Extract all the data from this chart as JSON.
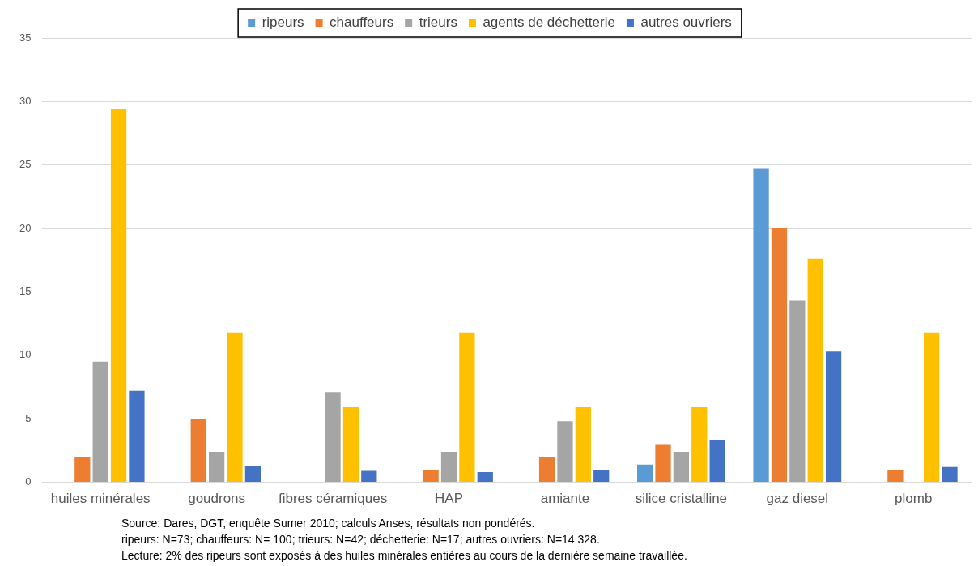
{
  "chart_data": {
    "type": "bar",
    "categories": [
      "huiles minérales",
      "goudrons",
      "fibres céramiques",
      "HAP",
      "amiante",
      "silice cristalline",
      "gaz diesel",
      "plomb"
    ],
    "series": [
      {
        "name": "ripeurs",
        "color": "#5b9bd5",
        "values": [
          0,
          0,
          0,
          0,
          0,
          1.4,
          24.7,
          0
        ]
      },
      {
        "name": "chauffeurs",
        "color": "#ed7d31",
        "values": [
          2.0,
          5.0,
          0,
          1.0,
          2.0,
          3.0,
          20.0,
          1.0
        ]
      },
      {
        "name": "trieurs",
        "color": "#a5a5a5",
        "values": [
          9.5,
          2.4,
          7.1,
          2.4,
          4.8,
          2.4,
          14.3,
          0
        ]
      },
      {
        "name": "agents de déchetterie",
        "color": "#ffc000",
        "values": [
          29.4,
          11.8,
          5.9,
          11.8,
          5.9,
          5.9,
          17.6,
          11.8
        ]
      },
      {
        "name": "autres ouvriers",
        "color": "#4472c4",
        "values": [
          7.2,
          1.3,
          0.9,
          0.8,
          1.0,
          3.3,
          10.3,
          1.2
        ]
      }
    ],
    "ylim": [
      0,
      35
    ],
    "yticks": [
      0,
      5,
      10,
      15,
      20,
      25,
      30,
      35
    ],
    "grid": "y",
    "legend": "top",
    "annotations": [
      "Source: Dares, DGT, enquête Sumer 2010; calculs Anses, résultats non pondérés.",
      "ripeurs: N=73; chauffeurs: N= 100; trieurs: N=42; déchetterie: N=17; autres ouvriers: N=14 328.",
      "Lecture: 2% des ripeurs sont exposés à des huiles minérales entières au cours de la dernière semaine travaillée."
    ]
  }
}
